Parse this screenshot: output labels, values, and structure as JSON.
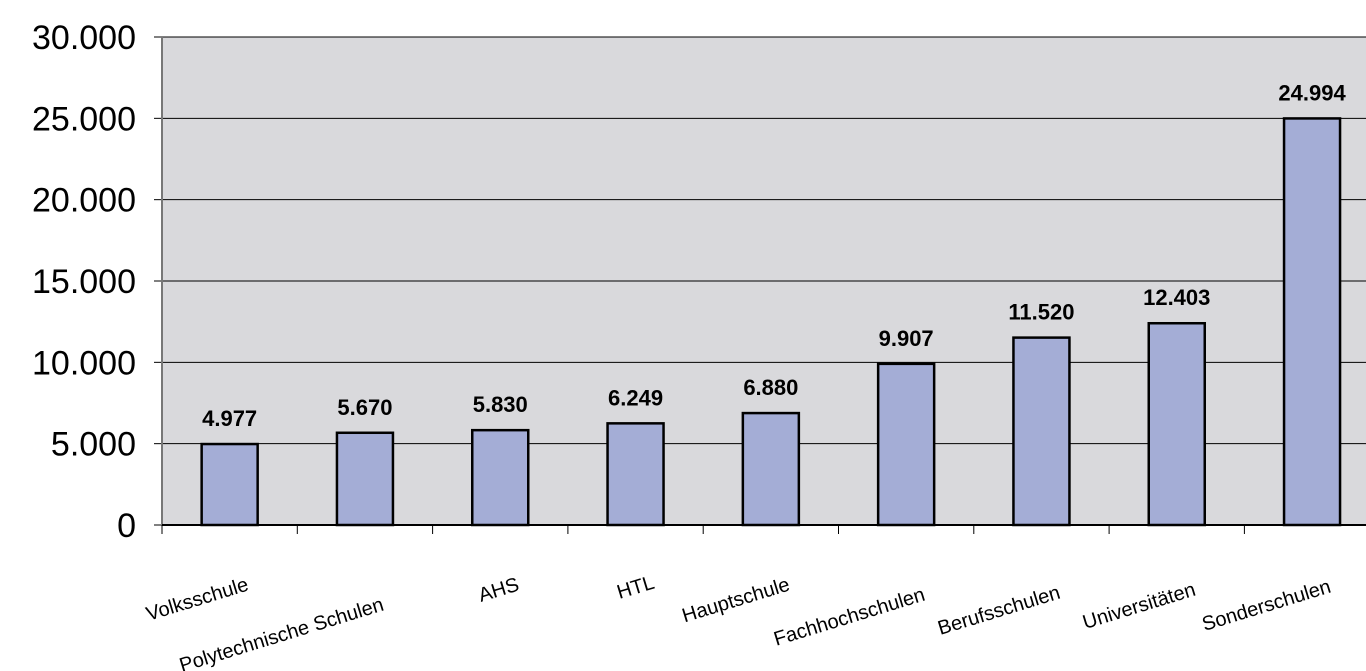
{
  "chart_data": {
    "type": "bar",
    "categories": [
      "Volksschule",
      "Polytechnische Schulen",
      "AHS",
      "HTL",
      "Hauptschule",
      "Fachhochschulen",
      "Berufsschulen",
      "Universitäten",
      "Sonderschulen"
    ],
    "values": [
      4977,
      5670,
      5830,
      6249,
      6880,
      9907,
      11520,
      12403,
      24994
    ],
    "value_labels": [
      "4.977",
      "5.670",
      "5.830",
      "6.249",
      "6.880",
      "9.907",
      "11.520",
      "12.403",
      "24.994"
    ],
    "yticks": [
      0,
      5000,
      10000,
      15000,
      20000,
      25000,
      30000
    ],
    "ytick_labels": [
      "0",
      "5.000",
      "10.000",
      "15.000",
      "20.000",
      "25.000",
      "30.000"
    ],
    "ylim": [
      0,
      30000
    ],
    "grid": true,
    "colors": {
      "bar_fill": "#a4add6",
      "bar_stroke": "#000000",
      "plot_background": "#d9d9dc",
      "gridline": "#000000"
    }
  }
}
